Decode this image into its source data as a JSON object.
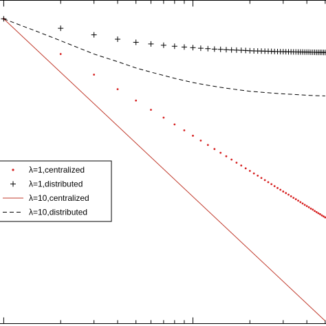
{
  "chart_data": {
    "type": "line",
    "title": "",
    "xlabel": "",
    "ylabel": "",
    "x_scale": "log",
    "y_scale": "log",
    "grid": false,
    "legend_position": "left",
    "series": [
      {
        "name": "λ=1,centralized",
        "marker": "dot",
        "line": "none",
        "color": "#d62020",
        "x": [
          1,
          2,
          3,
          4,
          5,
          6,
          7,
          8,
          9,
          10,
          11,
          12,
          13,
          14,
          15,
          16,
          17,
          18,
          19,
          20,
          21,
          22,
          23,
          24,
          25,
          26,
          27,
          28,
          29,
          30,
          31,
          32,
          33,
          34,
          35,
          36,
          37,
          38,
          39,
          40,
          41,
          42,
          43,
          44,
          45,
          46,
          47,
          48,
          49,
          50
        ],
        "y": [
          1,
          0.5,
          0.3333,
          0.25,
          0.2,
          0.1667,
          0.1429,
          0.125,
          0.1111,
          0.1,
          0.0909,
          0.0833,
          0.0769,
          0.0714,
          0.0667,
          0.0625,
          0.0588,
          0.0556,
          0.0526,
          0.05,
          0.0476,
          0.0455,
          0.0435,
          0.0417,
          0.04,
          0.0385,
          0.037,
          0.0357,
          0.0345,
          0.0333,
          0.0323,
          0.0313,
          0.0303,
          0.0294,
          0.0286,
          0.0278,
          0.027,
          0.0263,
          0.0256,
          0.025,
          0.0244,
          0.0238,
          0.0233,
          0.0227,
          0.0222,
          0.0217,
          0.0213,
          0.0208,
          0.0204,
          0.02
        ]
      },
      {
        "name": "λ=1,distributed",
        "marker": "plus",
        "line": "none",
        "color": "#000000",
        "x": [
          1,
          2,
          3,
          4,
          5,
          6,
          7,
          8,
          9,
          10,
          11,
          12,
          13,
          14,
          15,
          16,
          17,
          18,
          19,
          20,
          21,
          22,
          23,
          24,
          25,
          26,
          27,
          28,
          29,
          30,
          31,
          32,
          33,
          34,
          35,
          36,
          37,
          38,
          39,
          40,
          41,
          42,
          43,
          44,
          45,
          46,
          47,
          48,
          49,
          50
        ],
        "y": [
          1,
          0.83,
          0.73,
          0.67,
          0.63,
          0.61,
          0.595,
          0.583,
          0.574,
          0.567,
          0.561,
          0.556,
          0.551,
          0.548,
          0.545,
          0.542,
          0.54,
          0.538,
          0.536,
          0.534,
          0.532,
          0.531,
          0.53,
          0.529,
          0.528,
          0.527,
          0.526,
          0.525,
          0.524,
          0.524,
          0.523,
          0.522,
          0.522,
          0.521,
          0.521,
          0.52,
          0.52,
          0.52,
          0.519,
          0.519,
          0.519,
          0.518,
          0.518,
          0.518,
          0.517,
          0.517,
          0.517,
          0.517,
          0.516,
          0.516
        ]
      },
      {
        "name": "λ=10,centralized",
        "marker": "none",
        "line": "solid",
        "color": "#c0392b",
        "x": [
          1,
          50
        ],
        "y": [
          1,
          0.0026
        ]
      },
      {
        "name": "λ=10,distributed",
        "marker": "none",
        "line": "dashed",
        "color": "#000000",
        "x": [
          1,
          1.5,
          2,
          3,
          4,
          5,
          6,
          8,
          10,
          12,
          15,
          20,
          25,
          30,
          35,
          40,
          45,
          50
        ],
        "y": [
          1,
          0.78,
          0.65,
          0.5,
          0.43,
          0.38,
          0.35,
          0.31,
          0.285,
          0.27,
          0.255,
          0.24,
          0.233,
          0.228,
          0.225,
          0.222,
          0.22,
          0.219
        ]
      }
    ]
  }
}
